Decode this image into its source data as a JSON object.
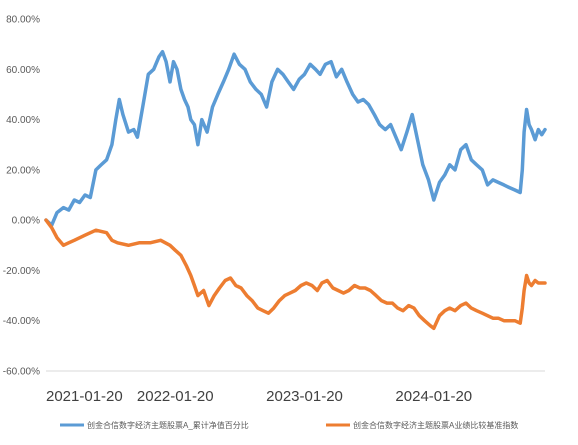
{
  "chart_data": {
    "type": "line",
    "title": "",
    "xlabel": "",
    "ylabel": "",
    "x_ticks": [
      "2021-01-20",
      "2022-01-20",
      "2023-01-20",
      "2024-01-20"
    ],
    "y_ticks": [
      "80.00%",
      "60.00%",
      "40.00%",
      "20.00%",
      "0.00%",
      "-20.00%",
      "-40.00%",
      "-60.00%"
    ],
    "ylim": [
      -60,
      80
    ],
    "xlim": [
      "2021-01-20",
      "2024-11-29"
    ],
    "grid": false,
    "legend_position": "bottom",
    "series": [
      {
        "name": "创金合信数字经济主题股票A_累计净值百分比",
        "color": "#5B9BD5",
        "points": [
          [
            "2021-01-20",
            0
          ],
          [
            "2021-02-05",
            -2
          ],
          [
            "2021-02-20",
            3
          ],
          [
            "2021-03-10",
            5
          ],
          [
            "2021-03-25",
            4
          ],
          [
            "2021-04-10",
            8
          ],
          [
            "2021-04-25",
            7
          ],
          [
            "2021-05-10",
            10
          ],
          [
            "2021-05-25",
            9
          ],
          [
            "2021-06-10",
            20
          ],
          [
            "2021-06-25",
            22
          ],
          [
            "2021-07-10",
            24
          ],
          [
            "2021-07-25",
            30
          ],
          [
            "2021-08-05",
            40
          ],
          [
            "2021-08-15",
            48
          ],
          [
            "2021-08-25",
            42
          ],
          [
            "2021-09-10",
            35
          ],
          [
            "2021-09-25",
            36
          ],
          [
            "2021-10-05",
            33
          ],
          [
            "2021-10-20",
            45
          ],
          [
            "2021-11-05",
            58
          ],
          [
            "2021-11-20",
            60
          ],
          [
            "2021-12-05",
            65
          ],
          [
            "2021-12-15",
            67
          ],
          [
            "2021-12-25",
            63
          ],
          [
            "2022-01-05",
            55
          ],
          [
            "2022-01-15",
            63
          ],
          [
            "2022-01-25",
            60
          ],
          [
            "2022-02-05",
            52
          ],
          [
            "2022-02-15",
            48
          ],
          [
            "2022-02-25",
            45
          ],
          [
            "2022-03-05",
            40
          ],
          [
            "2022-03-15",
            38
          ],
          [
            "2022-03-25",
            30
          ],
          [
            "2022-04-05",
            40
          ],
          [
            "2022-04-20",
            35
          ],
          [
            "2022-05-05",
            45
          ],
          [
            "2022-05-20",
            50
          ],
          [
            "2022-06-05",
            55
          ],
          [
            "2022-06-20",
            60
          ],
          [
            "2022-07-05",
            66
          ],
          [
            "2022-07-20",
            62
          ],
          [
            "2022-08-05",
            60
          ],
          [
            "2022-08-20",
            55
          ],
          [
            "2022-09-05",
            52
          ],
          [
            "2022-09-20",
            50
          ],
          [
            "2022-10-05",
            45
          ],
          [
            "2022-10-20",
            55
          ],
          [
            "2022-11-05",
            60
          ],
          [
            "2022-11-20",
            58
          ],
          [
            "2022-12-05",
            55
          ],
          [
            "2022-12-20",
            52
          ],
          [
            "2023-01-05",
            56
          ],
          [
            "2023-01-20",
            58
          ],
          [
            "2023-02-05",
            62
          ],
          [
            "2023-02-20",
            60
          ],
          [
            "2023-03-05",
            58
          ],
          [
            "2023-03-20",
            62
          ],
          [
            "2023-04-05",
            63
          ],
          [
            "2023-04-20",
            57
          ],
          [
            "2023-05-05",
            60
          ],
          [
            "2023-05-20",
            55
          ],
          [
            "2023-06-05",
            50
          ],
          [
            "2023-06-20",
            47
          ],
          [
            "2023-07-05",
            48
          ],
          [
            "2023-07-20",
            46
          ],
          [
            "2023-08-05",
            42
          ],
          [
            "2023-08-20",
            38
          ],
          [
            "2023-09-05",
            36
          ],
          [
            "2023-09-20",
            38
          ],
          [
            "2023-10-05",
            33
          ],
          [
            "2023-10-20",
            28
          ],
          [
            "2023-11-05",
            35
          ],
          [
            "2023-11-20",
            42
          ],
          [
            "2023-12-05",
            32
          ],
          [
            "2023-12-20",
            22
          ],
          [
            "2024-01-05",
            16
          ],
          [
            "2024-01-20",
            8
          ],
          [
            "2024-02-05",
            15
          ],
          [
            "2024-02-20",
            18
          ],
          [
            "2024-03-05",
            22
          ],
          [
            "2024-03-20",
            20
          ],
          [
            "2024-04-05",
            28
          ],
          [
            "2024-04-20",
            30
          ],
          [
            "2024-05-05",
            24
          ],
          [
            "2024-05-20",
            22
          ],
          [
            "2024-06-05",
            20
          ],
          [
            "2024-06-20",
            14
          ],
          [
            "2024-07-05",
            16
          ],
          [
            "2024-07-20",
            15
          ],
          [
            "2024-08-05",
            14
          ],
          [
            "2024-08-20",
            13
          ],
          [
            "2024-09-05",
            12
          ],
          [
            "2024-09-20",
            11
          ],
          [
            "2024-09-26",
            20
          ],
          [
            "2024-10-01",
            35
          ],
          [
            "2024-10-08",
            44
          ],
          [
            "2024-10-15",
            38
          ],
          [
            "2024-10-22",
            36
          ],
          [
            "2024-11-01",
            32
          ],
          [
            "2024-11-10",
            36
          ],
          [
            "2024-11-20",
            34
          ],
          [
            "2024-11-29",
            36
          ]
        ]
      },
      {
        "name": "创金合信数字经济主题股票A业绩比较基准指数",
        "color": "#ED7D31",
        "points": [
          [
            "2021-01-20",
            0
          ],
          [
            "2021-02-05",
            -3
          ],
          [
            "2021-02-20",
            -7
          ],
          [
            "2021-03-10",
            -10
          ],
          [
            "2021-03-25",
            -9
          ],
          [
            "2021-04-10",
            -8
          ],
          [
            "2021-05-10",
            -6
          ],
          [
            "2021-06-10",
            -4
          ],
          [
            "2021-07-10",
            -5
          ],
          [
            "2021-07-25",
            -8
          ],
          [
            "2021-08-10",
            -9
          ],
          [
            "2021-09-10",
            -10
          ],
          [
            "2021-10-10",
            -9
          ],
          [
            "2021-11-10",
            -9
          ],
          [
            "2021-12-10",
            -8
          ],
          [
            "2022-01-05",
            -10
          ],
          [
            "2022-01-20",
            -12
          ],
          [
            "2022-02-05",
            -14
          ],
          [
            "2022-02-20",
            -18
          ],
          [
            "2022-03-05",
            -22
          ],
          [
            "2022-03-15",
            -26
          ],
          [
            "2022-03-25",
            -30
          ],
          [
            "2022-04-10",
            -28
          ],
          [
            "2022-04-25",
            -34
          ],
          [
            "2022-05-10",
            -30
          ],
          [
            "2022-05-25",
            -27
          ],
          [
            "2022-06-10",
            -24
          ],
          [
            "2022-06-25",
            -23
          ],
          [
            "2022-07-10",
            -26
          ],
          [
            "2022-07-25",
            -27
          ],
          [
            "2022-08-10",
            -30
          ],
          [
            "2022-08-25",
            -32
          ],
          [
            "2022-09-10",
            -35
          ],
          [
            "2022-09-25",
            -36
          ],
          [
            "2022-10-10",
            -37
          ],
          [
            "2022-10-25",
            -35
          ],
          [
            "2022-11-10",
            -32
          ],
          [
            "2022-11-25",
            -30
          ],
          [
            "2022-12-10",
            -29
          ],
          [
            "2022-12-25",
            -28
          ],
          [
            "2023-01-10",
            -26
          ],
          [
            "2023-01-25",
            -25
          ],
          [
            "2023-02-10",
            -26
          ],
          [
            "2023-02-25",
            -28
          ],
          [
            "2023-03-10",
            -25
          ],
          [
            "2023-03-25",
            -24
          ],
          [
            "2023-04-10",
            -27
          ],
          [
            "2023-04-25",
            -28
          ],
          [
            "2023-05-10",
            -29
          ],
          [
            "2023-05-25",
            -28
          ],
          [
            "2023-06-10",
            -26
          ],
          [
            "2023-06-25",
            -27
          ],
          [
            "2023-07-10",
            -27
          ],
          [
            "2023-07-25",
            -28
          ],
          [
            "2023-08-10",
            -30
          ],
          [
            "2023-08-25",
            -32
          ],
          [
            "2023-09-10",
            -33
          ],
          [
            "2023-09-25",
            -33
          ],
          [
            "2023-10-10",
            -35
          ],
          [
            "2023-10-25",
            -36
          ],
          [
            "2023-11-10",
            -34
          ],
          [
            "2023-11-25",
            -35
          ],
          [
            "2023-12-10",
            -38
          ],
          [
            "2023-12-25",
            -40
          ],
          [
            "2024-01-10",
            -42
          ],
          [
            "2024-01-20",
            -43
          ],
          [
            "2024-02-05",
            -38
          ],
          [
            "2024-02-20",
            -36
          ],
          [
            "2024-03-05",
            -35
          ],
          [
            "2024-03-20",
            -36
          ],
          [
            "2024-04-05",
            -34
          ],
          [
            "2024-04-20",
            -33
          ],
          [
            "2024-05-05",
            -35
          ],
          [
            "2024-05-20",
            -36
          ],
          [
            "2024-06-05",
            -37
          ],
          [
            "2024-06-20",
            -38
          ],
          [
            "2024-07-05",
            -39
          ],
          [
            "2024-07-20",
            -39
          ],
          [
            "2024-08-05",
            -40
          ],
          [
            "2024-08-20",
            -40
          ],
          [
            "2024-09-05",
            -40
          ],
          [
            "2024-09-20",
            -41
          ],
          [
            "2024-09-26",
            -35
          ],
          [
            "2024-10-01",
            -28
          ],
          [
            "2024-10-08",
            -22
          ],
          [
            "2024-10-15",
            -25
          ],
          [
            "2024-10-22",
            -26
          ],
          [
            "2024-11-01",
            -24
          ],
          [
            "2024-11-10",
            -25
          ],
          [
            "2024-11-20",
            -25
          ],
          [
            "2024-11-29",
            -25
          ]
        ]
      }
    ]
  }
}
